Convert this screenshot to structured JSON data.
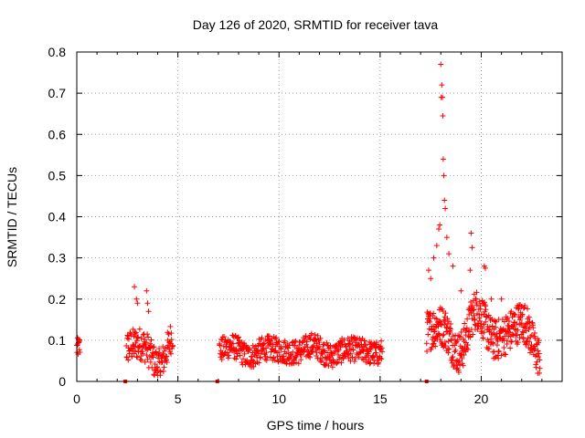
{
  "chart_data": {
    "type": "scatter",
    "title": "Day 126 of 2020, SRMTID for receiver tava",
    "xlabel": "GPS time / hours",
    "ylabel": "SRMTID / TECUs",
    "xlim": [
      0,
      24
    ],
    "ylim": [
      0,
      0.8
    ],
    "xticks": [
      0,
      5,
      10,
      15,
      20
    ],
    "yticks": [
      0,
      0.1,
      0.2,
      0.3,
      0.4,
      0.5,
      0.6,
      0.7,
      0.8
    ],
    "xtick_labels": [
      "0",
      "5",
      "10",
      "15",
      "20"
    ],
    "ytick_labels": [
      "0",
      "0.1",
      "0.2",
      "0.3",
      "0.4",
      "0.5",
      "0.6",
      "0.7",
      "0.8"
    ],
    "grid": true,
    "color": "#ff0000",
    "series": [
      {
        "name": "SRMTID",
        "marker": "+",
        "segments": [
          {
            "t0": 0.0,
            "t1": 0.15,
            "base": 0.08,
            "amp": 0.02,
            "noise": 0.025,
            "n": 14
          },
          {
            "t0": 2.45,
            "t1": 4.75,
            "base": 0.08,
            "amp": 0.05,
            "noise": 0.04,
            "n": 150
          },
          {
            "t0": 7.05,
            "t1": 15.1,
            "base": 0.075,
            "amp": 0.015,
            "noise": 0.03,
            "n": 520
          },
          {
            "t0": 17.3,
            "t1": 22.9,
            "base": 0.12,
            "amp": 0.06,
            "noise": 0.05,
            "n": 420
          }
        ],
        "outliers": [
          [
            2.85,
            0.23
          ],
          [
            2.95,
            0.2
          ],
          [
            3.0,
            0.19
          ],
          [
            3.45,
            0.22
          ],
          [
            3.5,
            0.19
          ],
          [
            3.55,
            0.17
          ],
          [
            17.4,
            0.27
          ],
          [
            17.5,
            0.25
          ],
          [
            17.65,
            0.3
          ],
          [
            17.8,
            0.33
          ],
          [
            17.9,
            0.37
          ],
          [
            17.95,
            0.38
          ],
          [
            18.0,
            0.77
          ],
          [
            18.02,
            0.69
          ],
          [
            18.05,
            0.72
          ],
          [
            18.08,
            0.69
          ],
          [
            18.1,
            0.645
          ],
          [
            18.12,
            0.54
          ],
          [
            18.15,
            0.5
          ],
          [
            18.18,
            0.44
          ],
          [
            18.22,
            0.42
          ],
          [
            18.3,
            0.35
          ],
          [
            18.4,
            0.31
          ],
          [
            18.6,
            0.28
          ],
          [
            19.5,
            0.36
          ],
          [
            19.55,
            0.325
          ],
          [
            19.45,
            0.27
          ],
          [
            20.15,
            0.28
          ],
          [
            20.2,
            0.275
          ],
          [
            19.0,
            0.22
          ],
          [
            20.5,
            0.2
          ],
          [
            21.0,
            0.2
          ]
        ],
        "zeros": [
          2.4,
          6.95,
          17.3
        ]
      }
    ]
  }
}
